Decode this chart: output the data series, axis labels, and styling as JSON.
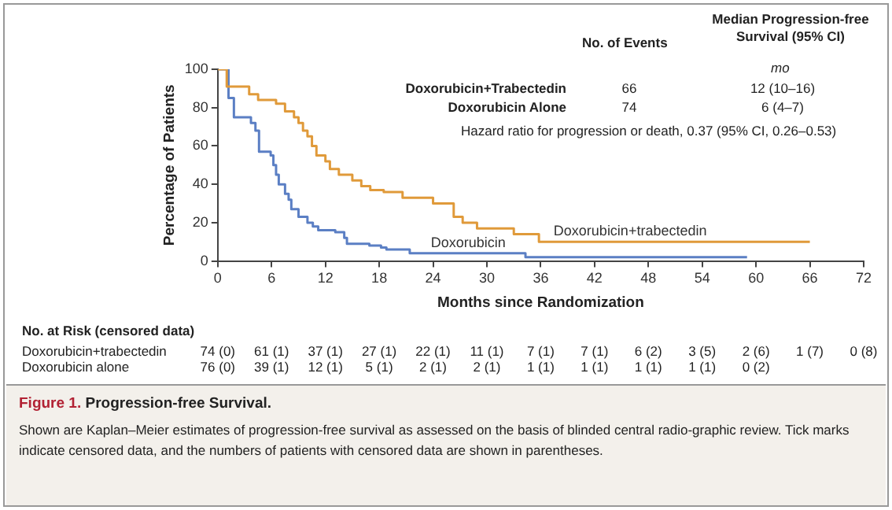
{
  "chart_data": {
    "type": "step",
    "title": "Progression-free Survival.",
    "xlabel": "Months since Randomization",
    "ylabel": "Percentage of Patients",
    "xlim": [
      0,
      72
    ],
    "xticks": [
      0,
      6,
      12,
      18,
      24,
      30,
      36,
      42,
      48,
      54,
      60,
      66,
      72
    ],
    "ylim": [
      0,
      100
    ],
    "yticks": [
      0,
      20,
      40,
      60,
      80,
      100
    ],
    "grid": false,
    "legend": false,
    "marker": "none",
    "line_style": "solid",
    "series": [
      {
        "name": "Doxorubicin+trabectedin",
        "color": "#e09a3a",
        "x": [
          0,
          1,
          3.5,
          4.5,
          6.5,
          7.5,
          8.5,
          9,
          9.5,
          10,
          10.5,
          11,
          12,
          12.5,
          13.5,
          15,
          16,
          17,
          18.5,
          20.6,
          24,
          26.3,
          27.3,
          28.9,
          33,
          35.8,
          66
        ],
        "values": [
          100,
          91,
          87,
          84,
          82,
          78,
          75,
          72,
          68,
          65,
          60,
          55,
          52,
          48,
          45,
          42,
          39,
          37,
          36,
          33,
          30,
          23,
          20,
          17,
          14,
          10,
          10
        ]
      },
      {
        "name": "Doxorubicin",
        "color": "#5b7fc4",
        "x": [
          0,
          1.2,
          1.8,
          3.7,
          4.2,
          4.6,
          5.9,
          6.2,
          6.5,
          6.8,
          7.5,
          7.9,
          8.2,
          9,
          10,
          10.6,
          11.2,
          13.1,
          14.1,
          14.4,
          16.9,
          18.2,
          18.8,
          21.4,
          34.3,
          59
        ],
        "values": [
          100,
          85,
          75,
          72,
          68,
          57,
          55,
          50,
          45,
          40,
          35,
          32,
          27,
          23,
          20,
          18,
          16,
          15,
          12,
          9,
          8,
          7,
          6,
          4,
          2,
          2
        ]
      }
    ],
    "annotations": [
      "No. of Events",
      "Median Progression-free Survival (95% CI)",
      "mo",
      "Doxorubicin+Trabectedin",
      "66",
      "12 (10–16)",
      "Doxorubicin Alone",
      "74",
      "6 (4–7)",
      "Hazard ratio for progression or death, 0.37 (95% CI, 0.26–0.53)",
      "No. at Risk (censored data)",
      "Doxorubicin+trabectedin",
      "74 (0)",
      "61 (1)",
      "37 (1)",
      "27 (1)",
      "22 (1)",
      "11 (1)",
      "7 (1)",
      "7 (1)",
      "6 (2)",
      "3 (5)",
      "2 (6)",
      "1 (7)",
      "0 (8)",
      "Doxorubicin alone",
      "76 (0)",
      "39 (1)",
      "12 (1)",
      "5 (1)",
      "2 (1)",
      "2 (1)",
      "1 (1)",
      "1 (1)",
      "1 (1)",
      "1 (1)",
      "0 (2)",
      "Figure 1.",
      "Shown are Kaplan–Meier estimates of progression-free survival as assessed on the basis of blinded central radio-graphic review. Tick marks indicate censored data, and the numbers of patients with censored data are shown in parentheses."
    ]
  }
}
